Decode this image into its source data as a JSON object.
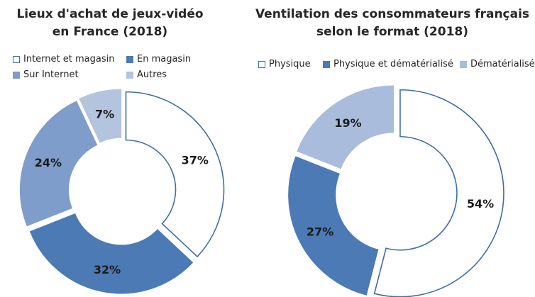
{
  "chart_data": [
    {
      "type": "pie",
      "title_lines": [
        "Lieux d'achat de jeux-vidéo",
        "en France (2018)"
      ],
      "series": [
        {
          "name": "Internet et magasin",
          "value": 37,
          "label": "37%",
          "color": "#ffffff",
          "stroke": "#3d6ea8"
        },
        {
          "name": "En magasin",
          "value": 32,
          "label": "32%",
          "color": "#4c7ab5",
          "stroke": "#4c7ab5"
        },
        {
          "name": "Sur Internet",
          "value": 24,
          "label": "24%",
          "color": "#7e9dca",
          "stroke": "#7e9dca"
        },
        {
          "name": "Autres",
          "value": 7,
          "label": "7%",
          "color": "#b4c4df",
          "stroke": "#b4c4df"
        }
      ],
      "legend_placement": "top"
    },
    {
      "type": "pie",
      "title_lines": [
        "Ventilation des consommateurs français",
        "selon le format (2018)"
      ],
      "series": [
        {
          "name": "Physique",
          "value": 54,
          "label": "54%",
          "color": "#ffffff",
          "stroke": "#3d6ea8"
        },
        {
          "name": "Physique et dématérialisé",
          "value": 27,
          "label": "27%",
          "color": "#4c7ab5",
          "stroke": "#4c7ab5"
        },
        {
          "name": "Dématérialisé",
          "value": 19,
          "label": "19%",
          "color": "#a9bcdc",
          "stroke": "#a9bcdc"
        }
      ],
      "legend_placement": "top"
    }
  ]
}
